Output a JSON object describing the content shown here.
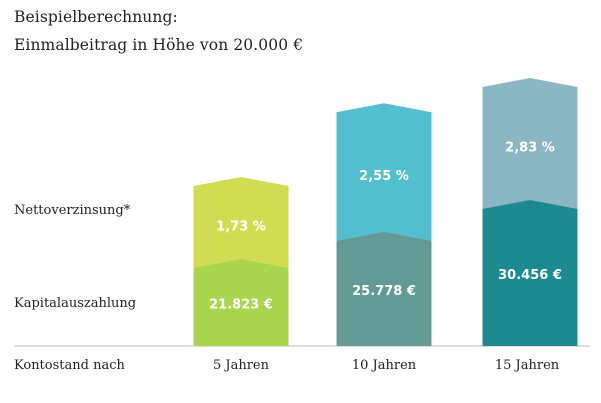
{
  "title": {
    "line1": "Beispielberechnung:",
    "line2": "Einmalbeitrag in Höhe von 20.000 €"
  },
  "row_labels": {
    "rate": "Nettoverzinsung*",
    "payout": "Kapitalauszahlung",
    "axis": "Kontostand nach"
  },
  "chart_data": {
    "type": "bar",
    "categories": [
      "5 Jahren",
      "10 Jahren",
      "15 Jahren"
    ],
    "series": [
      {
        "name": "Kapitalauszahlung",
        "values": [
          21823,
          25778,
          30456
        ],
        "labels": [
          "21.823 €",
          "25.778 €",
          "30.456 €"
        ],
        "colors": [
          "#abd44f",
          "#639a95",
          "#1d8a92"
        ]
      },
      {
        "name": "Nettoverzinsung*",
        "values": [
          1.73,
          2.55,
          2.83
        ],
        "labels": [
          "1,73 %",
          "2,55 %",
          "2,83 %"
        ],
        "colors": [
          "#d2dc53",
          "#53bfce",
          "#8bb6c3"
        ]
      }
    ]
  }
}
